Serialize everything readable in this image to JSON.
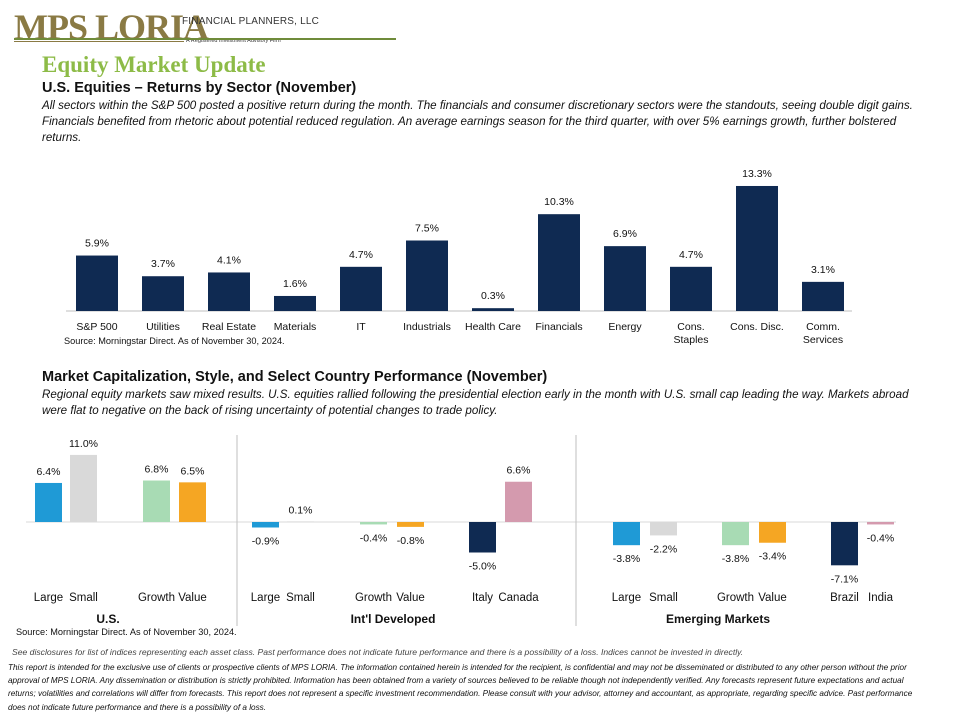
{
  "logo": {
    "name": "MPS LORIA",
    "line1": "FINANCIAL PLANNERS, LLC",
    "line2": "A Registered Investment Advisory Firm"
  },
  "page_title": "Equity Market Update",
  "section1": {
    "heading": "U.S. Equities – Returns by Sector (November)",
    "paragraph": "All sectors within the S&P 500 posted a positive return during the month. The financials and consumer discretionary sectors were the standouts, seeing double digit gains. Financials benefited from rhetoric about potential reduced regulation. An average earnings season for the third quarter, with over 5% earnings growth, further bolstered returns.",
    "source": "Source: Morningstar Direct. As of November 30, 2024."
  },
  "section2": {
    "heading": "Market Capitalization, Style, and Select Country Performance (November)",
    "paragraph": "Regional equity markets saw mixed results. U.S. equities rallied following the presidential election early in the month with U.S. small cap leading the way. Markets abroad were flat to negative on the back of rising uncertainty of potential changes to trade policy.",
    "source": "Source: Morningstar Direct. As of November 30, 2024."
  },
  "disclosures": {
    "line1": "See disclosures for list of indices representing each asset class. Past performance does not indicate future performance and there is a possibility of a loss. Indices cannot be invested in directly.",
    "body": "This report is intended for the exclusive use of clients or prospective clients of MPS LORIA. The information contained herein is intended for the recipient, is confidential and may not be disseminated or distributed to any other person without the prior approval of MPS LORIA. Any dissemination or distribution is strictly prohibited. Information has been obtained from a variety of sources believed to be reliable though not independently verified. Any forecasts represent future expectations and actual returns; volatilities and correlations will differ from forecasts. This report does not represent a specific investment recommendation. Please consult with your advisor, attorney and accountant, as appropriate, regarding specific advice. Past performance does not indicate future performance and there is a possibility of a loss."
  },
  "chart_data": [
    {
      "type": "bar",
      "categories": [
        "S&P 500",
        "Utilities",
        "Real Estate",
        "Materials",
        "IT",
        "Industrials",
        "Health Care",
        "Financials",
        "Energy",
        "Cons.\nStaples",
        "Cons. Disc.",
        "Comm.\nServices"
      ],
      "values": [
        5.9,
        3.7,
        4.1,
        1.6,
        4.7,
        7.5,
        0.3,
        10.3,
        6.9,
        4.7,
        13.3,
        3.1
      ],
      "value_labels": [
        "5.9%",
        "3.7%",
        "4.1%",
        "1.6%",
        "4.7%",
        "7.5%",
        "0.3%",
        "10.3%",
        "6.9%",
        "4.7%",
        "13.3%",
        "3.1%"
      ],
      "color": "#0f2a52",
      "grid": false
    },
    {
      "type": "bar",
      "groups": [
        {
          "name": "U.S.",
          "bars": [
            {
              "label": "Large",
              "value": 6.4,
              "value_label": "6.4%",
              "color": "#1f9ad6"
            },
            {
              "label": "Small",
              "value": 11.0,
              "value_label": "11.0%",
              "color": "#d9d9d9"
            },
            {
              "label": "Growth",
              "value": 6.8,
              "value_label": "6.8%",
              "color": "#a8dbb4"
            },
            {
              "label": "Value",
              "value": 6.5,
              "value_label": "6.5%",
              "color": "#f5a623"
            }
          ]
        },
        {
          "name": "Int'l Developed",
          "bars": [
            {
              "label": "Large",
              "value": -0.9,
              "value_label": "-0.9%",
              "color": "#1f9ad6"
            },
            {
              "label": "Small",
              "value": 0.1,
              "value_label": "0.1%",
              "color": "#d9d9d9"
            },
            {
              "label": "Growth",
              "value": -0.4,
              "value_label": "-0.4%",
              "color": "#a8dbb4"
            },
            {
              "label": "Value",
              "value": -0.8,
              "value_label": "-0.8%",
              "color": "#f5a623"
            },
            {
              "label": "Italy",
              "value": -5.0,
              "value_label": "-5.0%",
              "color": "#0f2a52"
            },
            {
              "label": "Canada",
              "value": 6.6,
              "value_label": "6.6%",
              "color": "#d49aae"
            }
          ]
        },
        {
          "name": "Emerging Markets",
          "bars": [
            {
              "label": "Large",
              "value": -3.8,
              "value_label": "-3.8%",
              "color": "#1f9ad6"
            },
            {
              "label": "Small",
              "value": -2.2,
              "value_label": "-2.2%",
              "color": "#d9d9d9"
            },
            {
              "label": "Growth",
              "value": -3.8,
              "value_label": "-3.8%",
              "color": "#a8dbb4"
            },
            {
              "label": "Value",
              "value": -3.4,
              "value_label": "-3.4%",
              "color": "#f5a623"
            },
            {
              "label": "Brazil",
              "value": -7.1,
              "value_label": "-7.1%",
              "color": "#0f2a52"
            },
            {
              "label": "India",
              "value": -0.4,
              "value_label": "-0.4%",
              "color": "#d49aae"
            }
          ]
        }
      ],
      "grid": false
    }
  ]
}
